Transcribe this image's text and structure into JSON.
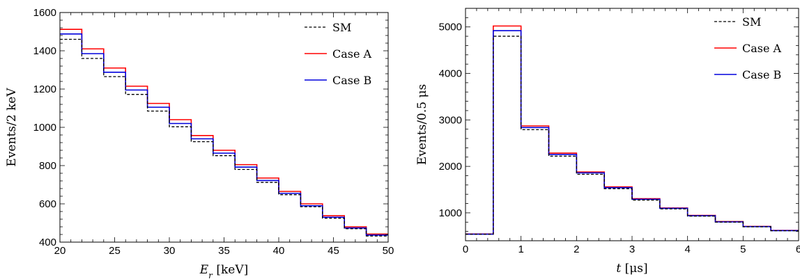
{
  "chart_data": [
    {
      "type": "line",
      "step": true,
      "xlabel": "E_r [keV]",
      "ylabel": "Events/2 keV",
      "xlim": [
        20,
        50
      ],
      "ylim": [
        400,
        1600
      ],
      "xticks": [
        20,
        25,
        30,
        35,
        40,
        45,
        50
      ],
      "yticks": [
        400,
        600,
        800,
        1000,
        1200,
        1400,
        1600
      ],
      "legend": "top-right",
      "grid": false,
      "bin_edges": [
        20,
        22,
        24,
        26,
        28,
        30,
        32,
        34,
        36,
        38,
        40,
        42,
        44,
        46,
        48,
        50
      ],
      "series": [
        {
          "name": "SM",
          "color": "#000000",
          "dash": "dashed",
          "values": [
            1460,
            1360,
            1265,
            1172,
            1085,
            1003,
            925,
            852,
            780,
            712,
            648,
            585,
            525,
            470,
            432
          ]
        },
        {
          "name": "Case A",
          "color": "#ff0000",
          "dash": "solid",
          "values": [
            1512,
            1410,
            1310,
            1215,
            1125,
            1040,
            957,
            880,
            805,
            735,
            665,
            600,
            538,
            480,
            442
          ]
        },
        {
          "name": "Case B",
          "color": "#0000dd",
          "dash": "solid",
          "values": [
            1488,
            1385,
            1288,
            1195,
            1105,
            1020,
            940,
            865,
            792,
            722,
            655,
            590,
            530,
            474,
            437
          ]
        }
      ]
    },
    {
      "type": "line",
      "step": true,
      "xlabel": "t [μs]",
      "ylabel": "Events/0.5 μs",
      "xlim": [
        0,
        6
      ],
      "ylim": [
        400,
        5400
      ],
      "xticks": [
        0,
        1,
        2,
        3,
        4,
        5,
        6
      ],
      "yticks": [
        1000,
        2000,
        3000,
        4000,
        5000
      ],
      "legend": "top-right",
      "grid": false,
      "bin_edges": [
        0,
        0.5,
        1,
        1.5,
        2,
        2.5,
        3,
        3.5,
        4,
        4.5,
        5,
        5.5,
        6
      ],
      "series": [
        {
          "name": "SM",
          "color": "#000000",
          "dash": "dashed",
          "values": [
            540,
            4800,
            2790,
            2220,
            1830,
            1520,
            1275,
            1085,
            930,
            800,
            700,
            615
          ]
        },
        {
          "name": "Case A",
          "color": "#ff0000",
          "dash": "solid",
          "values": [
            545,
            5020,
            2870,
            2285,
            1880,
            1560,
            1305,
            1105,
            945,
            812,
            708,
            622
          ]
        },
        {
          "name": "Case B",
          "color": "#0000dd",
          "dash": "solid",
          "values": [
            542,
            4920,
            2835,
            2255,
            1860,
            1543,
            1292,
            1097,
            938,
            806,
            704,
            618
          ]
        }
      ]
    }
  ]
}
